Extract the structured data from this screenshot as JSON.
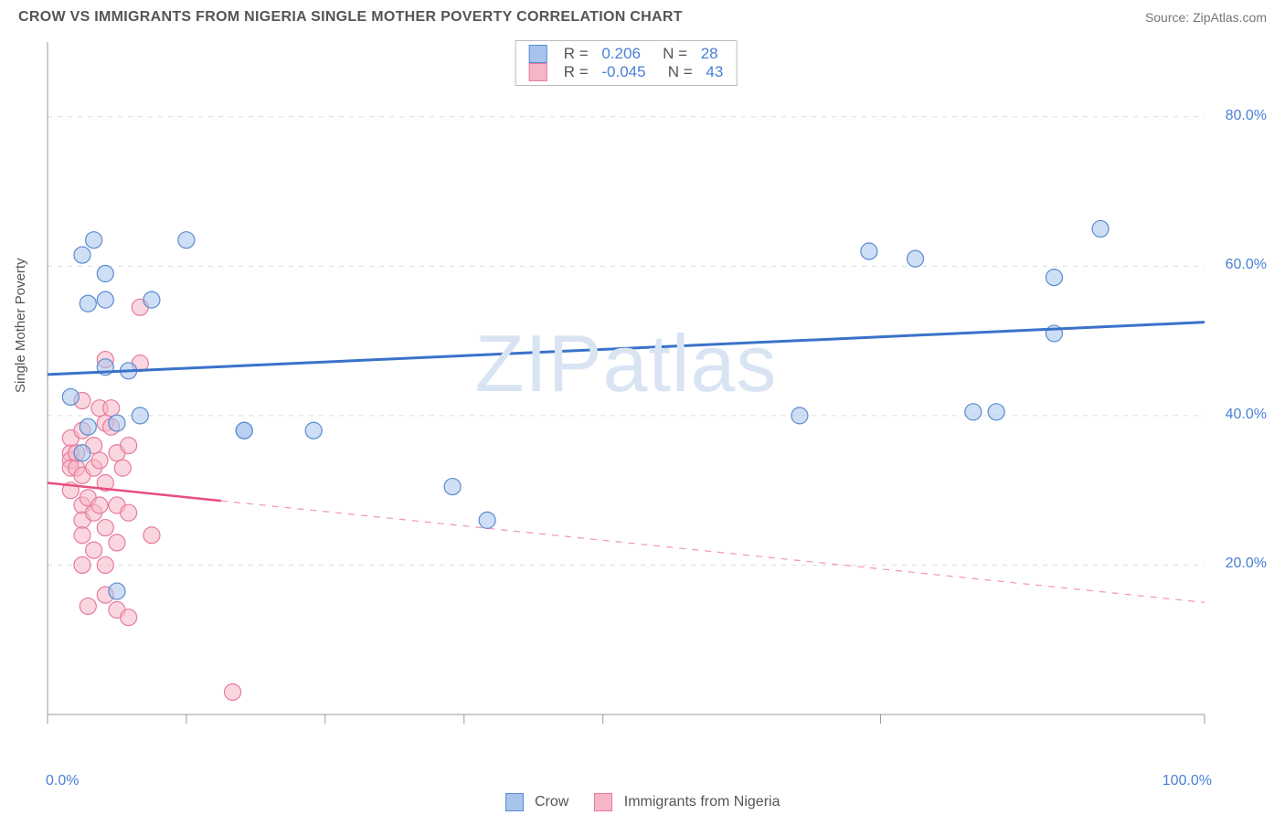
{
  "header": {
    "title": "CROW VS IMMIGRANTS FROM NIGERIA SINGLE MOTHER POVERTY CORRELATION CHART",
    "source": "Source: ZipAtlas.com"
  },
  "chart": {
    "type": "scatter",
    "ylabel": "Single Mother Poverty",
    "xlim": [
      0,
      100
    ],
    "ylim": [
      0,
      90
    ],
    "ytick_values": [
      20,
      40,
      60,
      80
    ],
    "ytick_labels": [
      "20.0%",
      "40.0%",
      "60.0%",
      "80.0%"
    ],
    "xlabel_min": "0.0%",
    "xlabel_max": "100.0%",
    "xaxis_ticks": [
      0,
      12,
      24,
      36,
      48,
      72,
      100
    ],
    "grid_color": "#dddddd",
    "axis_color": "#999999",
    "background_color": "#ffffff",
    "marker_radius": 9,
    "marker_opacity": 0.55,
    "watermark": "ZIPatlas",
    "series": {
      "crow": {
        "label": "Crow",
        "fill": "#a6c4ec",
        "stroke": "#5a8bd0",
        "line_color": "#3a72c9",
        "line_width": 3,
        "R": "0.206",
        "N": "28",
        "trend": {
          "x1": 0,
          "y1": 45.5,
          "x2": 100,
          "y2": 52.5,
          "solid_to_x": 100
        },
        "points": [
          [
            2,
            42.5
          ],
          [
            3,
            61.5
          ],
          [
            3,
            35
          ],
          [
            3.5,
            38.5
          ],
          [
            3.5,
            55
          ],
          [
            4,
            63.5
          ],
          [
            5,
            46.5
          ],
          [
            5,
            55.5
          ],
          [
            5,
            59
          ],
          [
            6,
            39
          ],
          [
            6,
            16.5
          ],
          [
            7,
            46
          ],
          [
            8,
            40
          ],
          [
            9,
            55.5
          ],
          [
            12,
            63.5
          ],
          [
            17,
            38
          ],
          [
            17,
            38
          ],
          [
            23,
            38
          ],
          [
            35,
            30.5
          ],
          [
            38,
            26
          ],
          [
            65,
            40
          ],
          [
            71,
            62
          ],
          [
            75,
            61
          ],
          [
            80,
            40.5
          ],
          [
            82,
            40.5
          ],
          [
            87,
            58.5
          ],
          [
            87,
            51
          ],
          [
            91,
            65
          ]
        ]
      },
      "nigeria": {
        "label": "Immigrants from Nigeria",
        "fill": "#f6b6c6",
        "stroke": "#e77a9b",
        "line_color": "#e94f7d",
        "line_width": 2.5,
        "R": "-0.045",
        "N": "43",
        "trend": {
          "x1": 0,
          "y1": 31,
          "x2": 100,
          "y2": 15,
          "solid_to_x": 15
        },
        "points": [
          [
            2,
            35
          ],
          [
            2,
            34
          ],
          [
            2,
            33
          ],
          [
            2,
            37
          ],
          [
            2,
            30
          ],
          [
            2.5,
            33
          ],
          [
            2.5,
            35
          ],
          [
            3,
            28
          ],
          [
            3,
            26
          ],
          [
            3,
            42
          ],
          [
            3,
            38
          ],
          [
            3,
            32
          ],
          [
            3,
            20
          ],
          [
            3,
            24
          ],
          [
            3.5,
            14.5
          ],
          [
            3.5,
            29
          ],
          [
            4,
            36
          ],
          [
            4,
            33
          ],
          [
            4,
            22
          ],
          [
            4,
            27
          ],
          [
            4.5,
            41
          ],
          [
            4.5,
            34
          ],
          [
            4.5,
            28
          ],
          [
            5,
            47.5
          ],
          [
            5,
            39
          ],
          [
            5,
            31
          ],
          [
            5,
            25
          ],
          [
            5,
            20
          ],
          [
            5,
            16
          ],
          [
            5.5,
            41
          ],
          [
            5.5,
            38.5
          ],
          [
            6,
            35
          ],
          [
            6,
            28
          ],
          [
            6,
            23
          ],
          [
            6,
            14
          ],
          [
            6.5,
            33
          ],
          [
            7,
            36
          ],
          [
            7,
            27
          ],
          [
            7,
            13
          ],
          [
            8,
            47
          ],
          [
            8,
            54.5
          ],
          [
            9,
            24
          ],
          [
            16,
            3
          ]
        ]
      }
    },
    "bottom_legend_order": [
      "crow",
      "nigeria"
    ]
  }
}
